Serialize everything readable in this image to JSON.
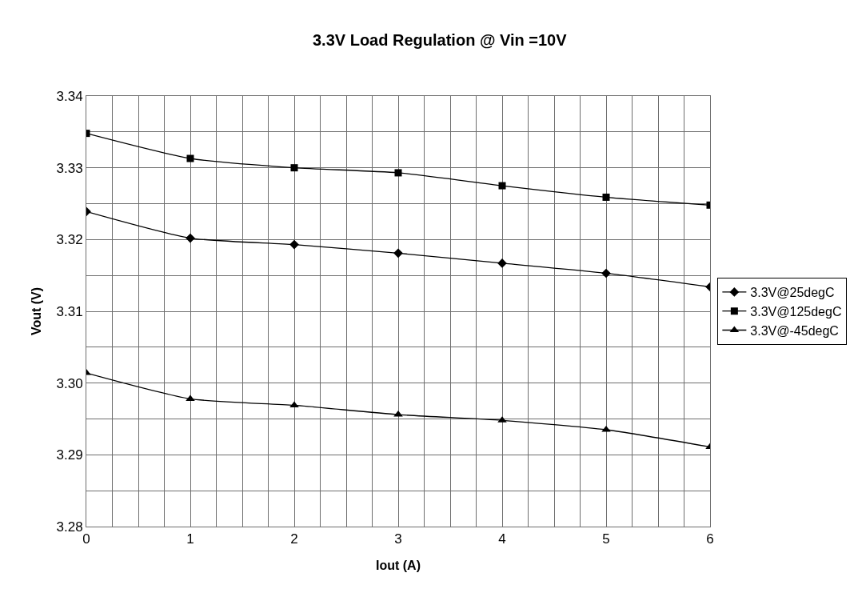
{
  "chart_data": {
    "type": "line",
    "title": "3.3V Load Regulation @ Vin =10V",
    "xlabel": "Iout (A)",
    "ylabel": "Vout (V)",
    "x": [
      0,
      1,
      2,
      3,
      4,
      5,
      6
    ],
    "series": [
      {
        "name": "3.3V@25degC",
        "color": "#000000",
        "marker": "diamond",
        "values": [
          3.3239,
          3.3202,
          3.3193,
          3.3181,
          3.3167,
          3.3153,
          3.3134
        ]
      },
      {
        "name": "3.3V@125degC",
        "color": "#000000",
        "marker": "square",
        "values": [
          3.3348,
          3.3313,
          3.33,
          3.3293,
          3.3275,
          3.3259,
          3.3248
        ]
      },
      {
        "name": "3.3V@-45degC",
        "color": "#000000",
        "marker": "triangle",
        "values": [
          3.3014,
          3.2978,
          3.2969,
          3.2956,
          3.2948,
          3.2935,
          3.2911
        ]
      }
    ],
    "xlim": [
      0,
      6
    ],
    "xticks": [
      0,
      {
        "value": 0.25,
        "label": null
      },
      {
        "value": 0.5,
        "label": null
      },
      {
        "value": 0.75,
        "label": null
      },
      1,
      {
        "value": 1.25,
        "label": null
      },
      {
        "value": 1.5,
        "label": null
      },
      {
        "value": 1.75,
        "label": null
      },
      2,
      {
        "value": 2.25,
        "label": null
      },
      {
        "value": 2.5,
        "label": null
      },
      {
        "value": 2.75,
        "label": null
      },
      3,
      {
        "value": 3.25,
        "label": null
      },
      {
        "value": 3.5,
        "label": null
      },
      {
        "value": 3.75,
        "label": null
      },
      4,
      {
        "value": 4.25,
        "label": null
      },
      {
        "value": 4.5,
        "label": null
      },
      {
        "value": 4.75,
        "label": null
      },
      5,
      {
        "value": 5.25,
        "label": null
      },
      {
        "value": 5.5,
        "label": null
      },
      {
        "value": 5.75,
        "label": null
      },
      6
    ],
    "ylim": [
      3.28,
      3.34
    ],
    "yticks": [
      3.28,
      {
        "value": 3.285,
        "label": null
      },
      3.29,
      {
        "value": 3.295,
        "label": null
      },
      {
        "value": 3.3,
        "label": "3.30"
      },
      {
        "value": 3.305,
        "label": null
      },
      3.31,
      {
        "value": 3.315,
        "label": null
      },
      3.32,
      {
        "value": 3.325,
        "label": null
      },
      3.33,
      {
        "value": 3.335,
        "label": null
      },
      3.34
    ],
    "grid": true,
    "legend": "right",
    "line_style": "solid"
  }
}
